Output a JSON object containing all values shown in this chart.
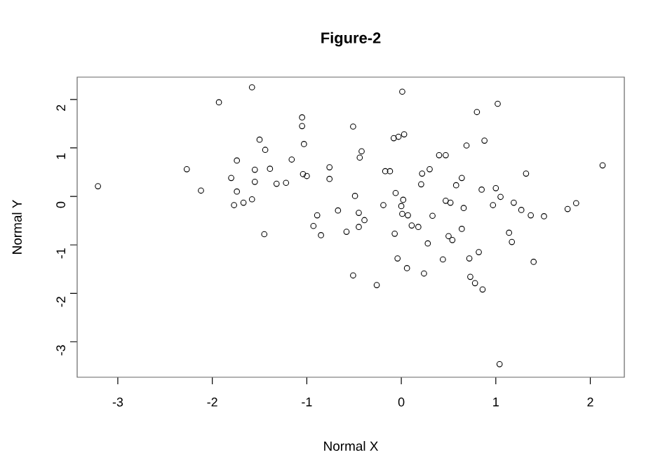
{
  "chart_data": {
    "type": "scatter",
    "title": "Figure-2",
    "xlabel": "Normal X",
    "ylabel": "Normal Y",
    "xlim": [
      -3.43,
      2.36
    ],
    "ylim": [
      -3.73,
      2.46
    ],
    "xticks": [
      -3,
      -2,
      -1,
      0,
      1,
      2
    ],
    "yticks": [
      -3,
      -2,
      -1,
      0,
      1,
      2
    ],
    "grid": false,
    "marker": "circle",
    "series": [
      {
        "color": "#000000",
        "x": [
          -3.21,
          -2.27,
          -2.12,
          -1.93,
          -1.58,
          -1.8,
          -1.74,
          -1.74,
          -1.77,
          -1.67,
          -1.58,
          -1.55,
          -1.55,
          -1.5,
          -1.44,
          -1.45,
          -1.39,
          -1.32,
          -1.22,
          -1.16,
          -1.05,
          -1.05,
          -1.03,
          -1.04,
          -1.0,
          -0.89,
          -0.93,
          -0.85,
          -0.76,
          -0.76,
          -0.67,
          -0.58,
          -0.51,
          -0.51,
          -0.42,
          -0.44,
          -0.49,
          -0.45,
          -0.45,
          -0.39,
          -0.26,
          -0.19,
          -0.17,
          -0.12,
          -0.08,
          -0.03,
          0.03,
          0.01,
          -0.06,
          0.0,
          0.02,
          0.01,
          0.07,
          -0.07,
          -0.04,
          0.06,
          0.11,
          0.18,
          0.21,
          0.22,
          0.3,
          0.24,
          0.28,
          0.33,
          0.4,
          0.47,
          0.44,
          0.47,
          0.52,
          0.5,
          0.54,
          0.58,
          0.64,
          0.66,
          0.64,
          0.69,
          0.8,
          0.88,
          0.72,
          0.82,
          0.73,
          0.78,
          0.86,
          0.85,
          0.97,
          1.0,
          1.05,
          1.02,
          1.04,
          1.14,
          1.17,
          1.19,
          1.27,
          1.32,
          1.37,
          1.4,
          1.51,
          1.76,
          1.85,
          2.13
        ],
        "values": [
          0.21,
          0.56,
          0.12,
          1.94,
          2.25,
          0.38,
          0.74,
          0.1,
          -0.18,
          -0.13,
          -0.06,
          0.55,
          0.3,
          1.17,
          0.96,
          -0.78,
          0.57,
          0.26,
          0.28,
          0.76,
          1.63,
          1.45,
          1.08,
          0.46,
          0.42,
          -0.39,
          -0.61,
          -0.8,
          0.6,
          0.36,
          -0.29,
          -0.73,
          -1.63,
          1.44,
          0.93,
          0.8,
          0.01,
          -0.34,
          -0.63,
          -0.49,
          -1.83,
          -0.18,
          0.52,
          0.52,
          1.2,
          1.23,
          1.28,
          2.16,
          0.07,
          -0.2,
          -0.07,
          -0.36,
          -0.39,
          -0.77,
          -1.28,
          -1.48,
          -0.6,
          -0.63,
          0.25,
          0.47,
          0.56,
          -1.59,
          -0.97,
          -0.4,
          0.85,
          0.85,
          -1.3,
          -0.09,
          -0.13,
          -0.82,
          -0.9,
          0.23,
          0.38,
          -0.24,
          -0.67,
          1.05,
          1.74,
          1.15,
          -1.28,
          -1.15,
          -1.66,
          -1.79,
          -1.92,
          0.14,
          -0.18,
          0.17,
          -0.01,
          1.91,
          -3.46,
          -0.75,
          -0.94,
          -0.13,
          -0.28,
          0.47,
          -0.39,
          -1.35,
          -0.41,
          -0.26,
          -0.14,
          0.64
        ]
      }
    ]
  }
}
